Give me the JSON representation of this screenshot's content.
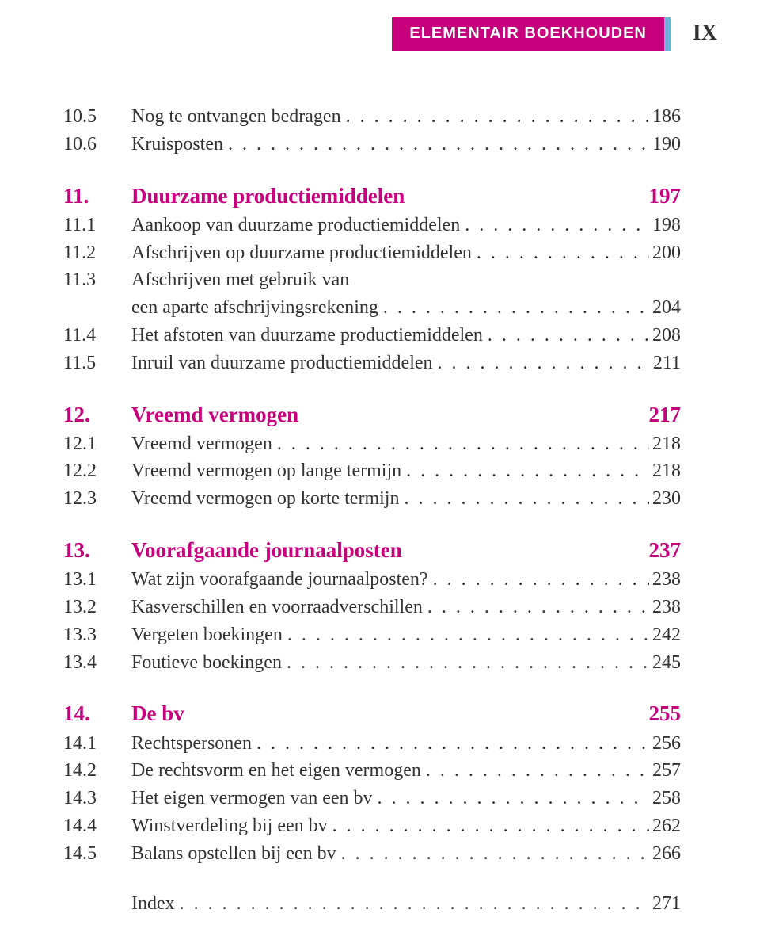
{
  "header": {
    "running_title": "ELEMENTAIR BOEKHOUDEN",
    "page_roman": "IX"
  },
  "colors": {
    "accent": "#c7007d",
    "stripe": "#6fb3d8",
    "text": "#333333"
  },
  "toc": {
    "sections": [
      {
        "leading": [
          {
            "num": "10.5",
            "title": "Nog te ontvangen bedragen",
            "page": "186"
          },
          {
            "num": "10.6",
            "title": "Kruisposten",
            "page": "190"
          }
        ]
      },
      {
        "chapter": {
          "num": "11.",
          "title": "Duurzame productiemiddelen",
          "page": "197"
        },
        "entries": [
          {
            "num": "11.1",
            "title": "Aankoop van duurzame productiemiddelen",
            "page": "198"
          },
          {
            "num": "11.2",
            "title": "Afschrijven op duurzame productiemiddelen",
            "page": "200"
          },
          {
            "num": "11.3",
            "title": "Afschrijven met gebruik van",
            "cont": "een aparte afschrijvingsrekening",
            "page": "204"
          },
          {
            "num": "11.4",
            "title": "Het afstoten van duurzame productiemiddelen",
            "page": "208"
          },
          {
            "num": "11.5",
            "title": "Inruil van duurzame productiemiddelen",
            "page": "211"
          }
        ]
      },
      {
        "chapter": {
          "num": "12.",
          "title": "Vreemd vermogen",
          "page": "217"
        },
        "entries": [
          {
            "num": "12.1",
            "title": "Vreemd vermogen",
            "page": "218"
          },
          {
            "num": "12.2",
            "title": "Vreemd vermogen op lange termijn",
            "page": "218"
          },
          {
            "num": "12.3",
            "title": "Vreemd vermogen op korte termijn",
            "page": "230"
          }
        ]
      },
      {
        "chapter": {
          "num": "13.",
          "title": "Voorafgaande journaalposten",
          "page": "237"
        },
        "entries": [
          {
            "num": "13.1",
            "title": "Wat zijn voorafgaande journaalposten?",
            "page": "238"
          },
          {
            "num": "13.2",
            "title": "Kasverschillen en voorraadverschillen",
            "page": "238"
          },
          {
            "num": "13.3",
            "title": "Vergeten boekingen",
            "page": "242"
          },
          {
            "num": "13.4",
            "title": "Foutieve boekingen",
            "page": "245"
          }
        ]
      },
      {
        "chapter": {
          "num": "14.",
          "title": "De bv",
          "page": "255"
        },
        "entries": [
          {
            "num": "14.1",
            "title": "Rechtspersonen",
            "page": "256"
          },
          {
            "num": "14.2",
            "title": "De rechtsvorm en het eigen vermogen",
            "page": "257"
          },
          {
            "num": "14.3",
            "title": "Het eigen vermogen van een bv",
            "page": "258"
          },
          {
            "num": "14.4",
            "title": "Winstverdeling bij een bv",
            "page": "262"
          },
          {
            "num": "14.5",
            "title": "Balans opstellen bij een bv",
            "page": "266"
          }
        ]
      },
      {
        "trailing": [
          {
            "num": "",
            "title": "Index",
            "page": "271"
          }
        ]
      }
    ]
  }
}
